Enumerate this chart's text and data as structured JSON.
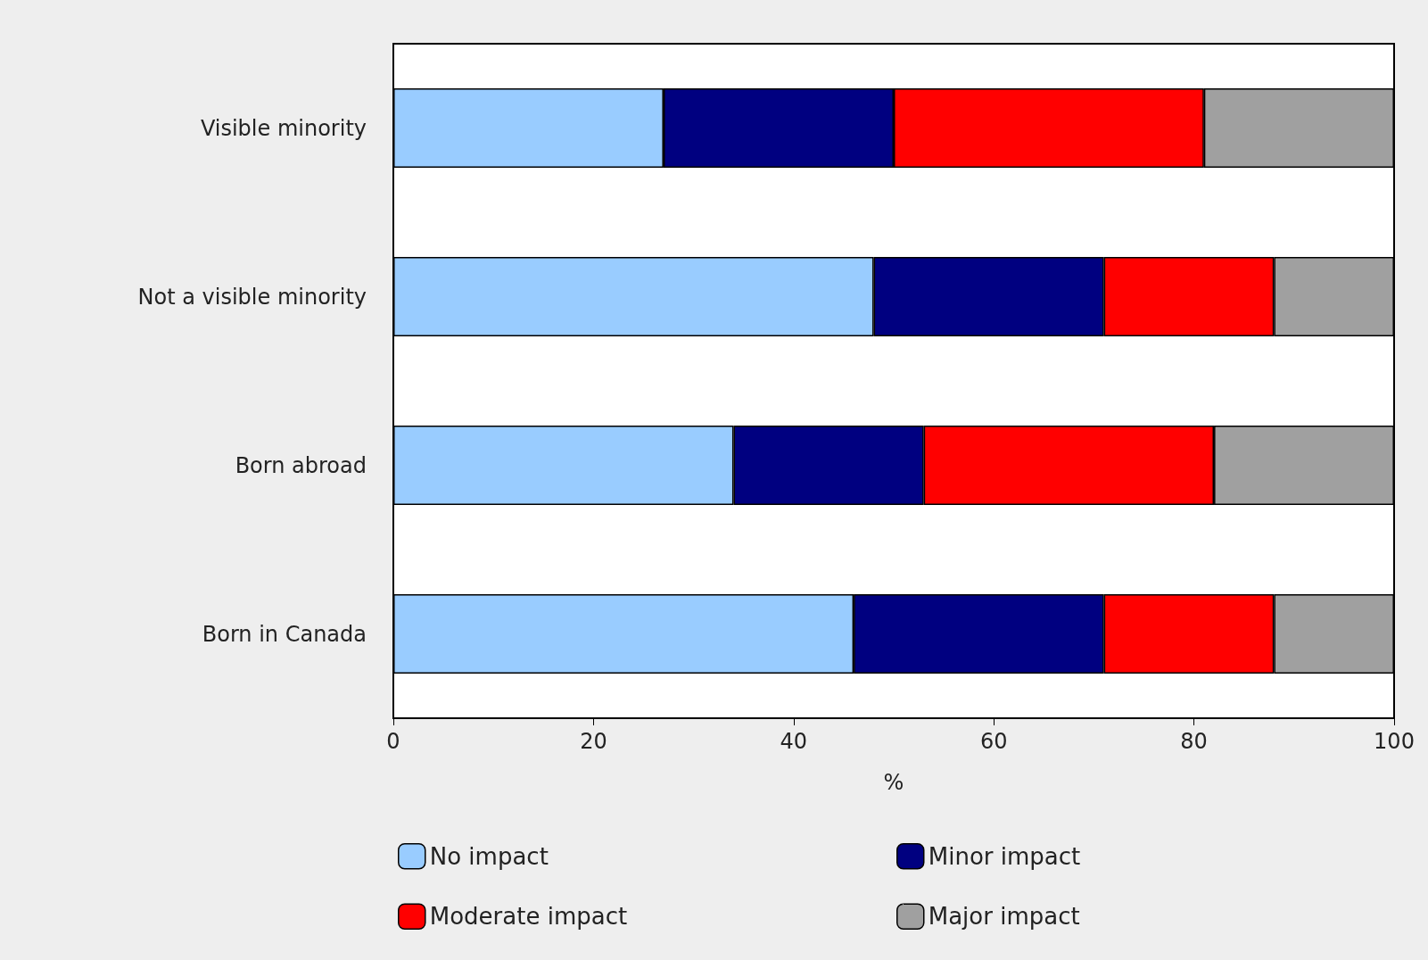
{
  "chart_data": {
    "type": "bar",
    "orientation": "horizontal",
    "stacked": true,
    "categories": [
      "Visible minority",
      "Not a visible minority",
      "Born abroad",
      "Born in Canada"
    ],
    "series": [
      {
        "name": "No impact",
        "color": "#99ccff",
        "values": [
          27,
          48,
          34,
          46
        ]
      },
      {
        "name": "Minor impact",
        "color": "#000080",
        "values": [
          23,
          23,
          19,
          25
        ]
      },
      {
        "name": "Moderate impact",
        "color": "#ff0000",
        "values": [
          31,
          17,
          29,
          17
        ]
      },
      {
        "name": "Major impact",
        "color": "#a0a0a0",
        "values": [
          19,
          12,
          18,
          12
        ]
      }
    ],
    "xlabel": "%",
    "xlim": [
      0,
      100
    ],
    "xticks": [
      0,
      20,
      40,
      60,
      80,
      100
    ],
    "grid": false,
    "legend": "bottom"
  }
}
